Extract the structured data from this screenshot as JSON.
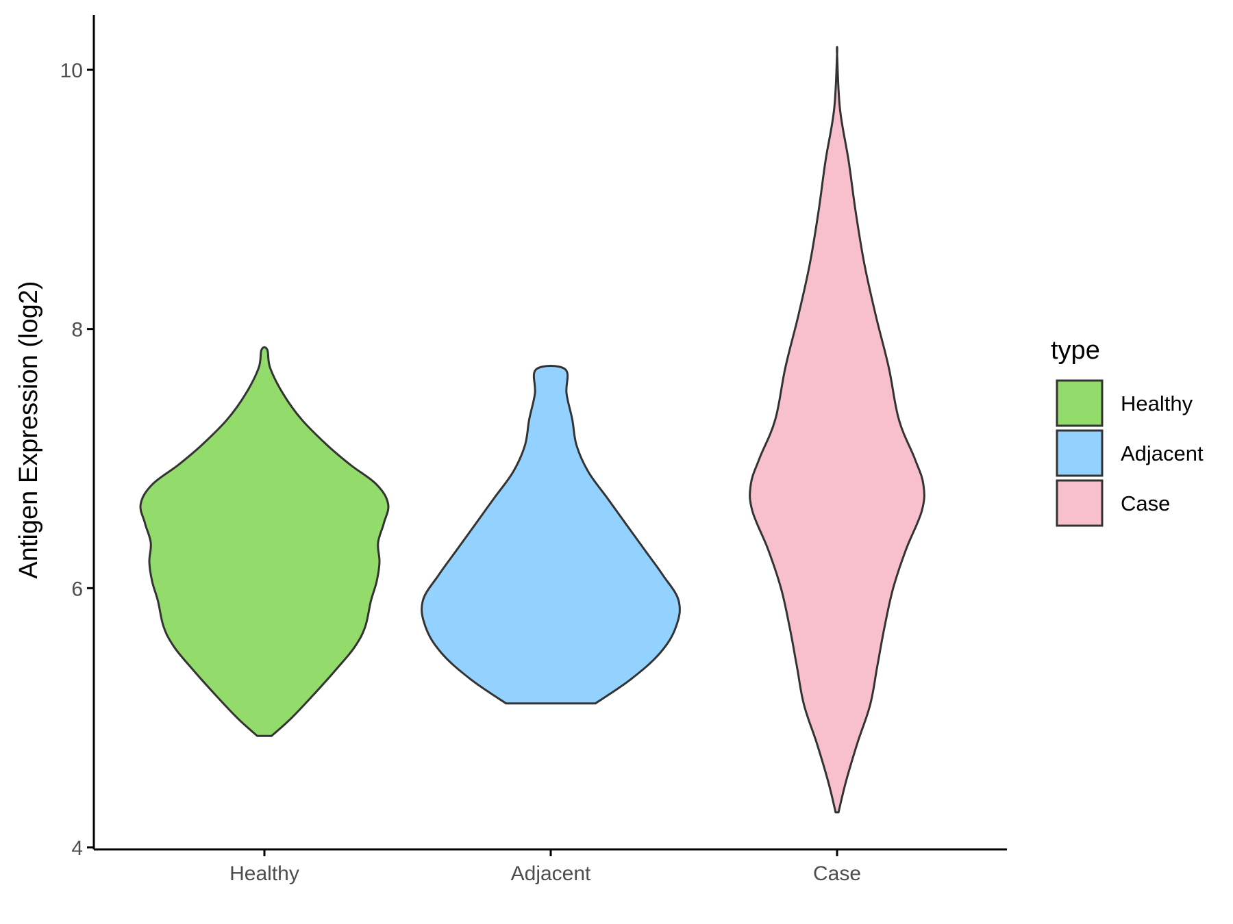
{
  "chart_data": {
    "type": "violin",
    "title": "",
    "xlabel": "",
    "ylabel": "Antigen Expression (log2)",
    "ylim": [
      4,
      10.4
    ],
    "yticks": [
      "4",
      "6",
      "8",
      "10"
    ],
    "categories": [
      "Healthy",
      "Adjacent",
      "Case"
    ],
    "grid": false,
    "legend": {
      "title": "type",
      "placement": "right",
      "entries": [
        "Healthy",
        "Adjacent",
        "Case"
      ]
    },
    "series": [
      {
        "category": "Healthy",
        "color": "#93DB6A",
        "min": 4.86,
        "max": 7.84,
        "profile": [
          [
            4.86,
            0.05
          ],
          [
            5.0,
            0.19
          ],
          [
            5.2,
            0.36
          ],
          [
            5.4,
            0.52
          ],
          [
            5.55,
            0.63
          ],
          [
            5.7,
            0.7
          ],
          [
            5.9,
            0.74
          ],
          [
            6.05,
            0.78
          ],
          [
            6.2,
            0.8
          ],
          [
            6.35,
            0.79
          ],
          [
            6.5,
            0.83
          ],
          [
            6.65,
            0.86
          ],
          [
            6.8,
            0.78
          ],
          [
            6.95,
            0.6
          ],
          [
            7.1,
            0.44
          ],
          [
            7.3,
            0.26
          ],
          [
            7.5,
            0.13
          ],
          [
            7.7,
            0.04
          ],
          [
            7.84,
            0.02
          ]
        ]
      },
      {
        "category": "Adjacent",
        "color": "#93D2FF",
        "min": 5.11,
        "max": 7.69,
        "profile": [
          [
            5.11,
            0.31
          ],
          [
            5.3,
            0.56
          ],
          [
            5.5,
            0.76
          ],
          [
            5.7,
            0.87
          ],
          [
            5.9,
            0.89
          ],
          [
            6.1,
            0.78
          ],
          [
            6.3,
            0.65
          ],
          [
            6.5,
            0.52
          ],
          [
            6.7,
            0.39
          ],
          [
            6.9,
            0.26
          ],
          [
            7.1,
            0.18
          ],
          [
            7.3,
            0.15
          ],
          [
            7.5,
            0.11
          ],
          [
            7.69,
            0.1
          ]
        ]
      },
      {
        "category": "Case",
        "color": "#F7C0CC",
        "min": 4.27,
        "max": 10.12,
        "profile": [
          [
            4.27,
            0.01
          ],
          [
            4.5,
            0.06
          ],
          [
            4.8,
            0.14
          ],
          [
            5.1,
            0.23
          ],
          [
            5.4,
            0.28
          ],
          [
            5.7,
            0.33
          ],
          [
            6.0,
            0.39
          ],
          [
            6.3,
            0.48
          ],
          [
            6.6,
            0.59
          ],
          [
            6.8,
            0.6
          ],
          [
            7.0,
            0.54
          ],
          [
            7.3,
            0.43
          ],
          [
            7.7,
            0.36
          ],
          [
            8.1,
            0.27
          ],
          [
            8.5,
            0.19
          ],
          [
            8.9,
            0.13
          ],
          [
            9.3,
            0.08
          ],
          [
            9.7,
            0.02
          ],
          [
            10.12,
            0.0
          ]
        ]
      }
    ]
  }
}
